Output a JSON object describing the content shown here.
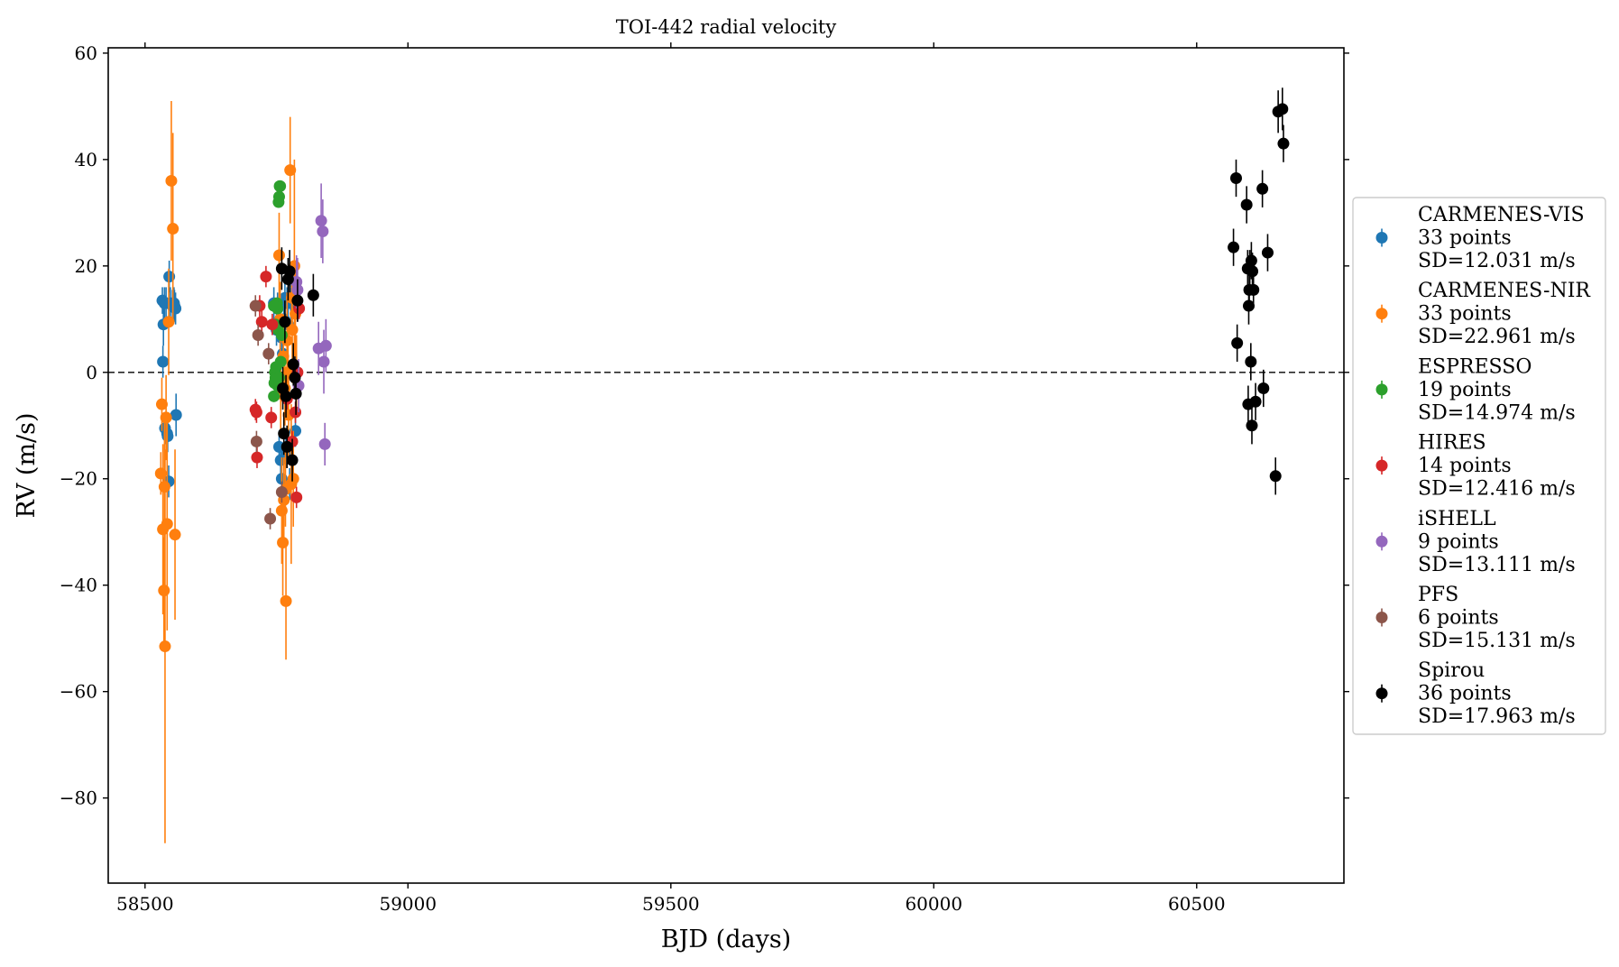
{
  "chart_data": {
    "type": "scatter",
    "title": "TOI-442 radial velocity",
    "xlabel": "BJD (days)",
    "ylabel": "RV (m/s)",
    "xlim": [
      58430,
      60780
    ],
    "ylim": [
      -96,
      61
    ],
    "xticks": [
      58500,
      59000,
      59500,
      60000,
      60500
    ],
    "yticks": [
      -80,
      -60,
      -40,
      -20,
      0,
      20,
      40,
      60
    ],
    "xtick_labels": [
      "58500",
      "59000",
      "59500",
      "60000",
      "60500"
    ],
    "ytick_labels": [
      "−80",
      "−60",
      "−40",
      "−20",
      "0",
      "20",
      "40",
      "60"
    ],
    "reference_line": {
      "y": 0,
      "style": "dashed"
    },
    "legend_position": "right, outside",
    "series": [
      {
        "name": "CARMENES-VIS",
        "count_label": "33 points",
        "sd_label": "SD=12.031 m/s",
        "color": "#1f77b4",
        "points": [
          [
            58533,
            13.5,
            2.5
          ],
          [
            58534,
            2,
            3
          ],
          [
            58535,
            9,
            4
          ],
          [
            58537,
            13,
            3
          ],
          [
            58538,
            -10.5,
            3
          ],
          [
            58540,
            13,
            3
          ],
          [
            58542,
            -11.5,
            3
          ],
          [
            58543,
            -12,
            3
          ],
          [
            58546,
            18,
            3
          ],
          [
            58548,
            13,
            3
          ],
          [
            58552,
            12.5,
            3
          ],
          [
            58555,
            13,
            3
          ],
          [
            58556,
            12.5,
            3
          ],
          [
            58558,
            12,
            3
          ],
          [
            58559,
            -8,
            4
          ],
          [
            58545,
            -20.5,
            3
          ],
          [
            58745,
            13,
            3
          ],
          [
            58750,
            8,
            3
          ],
          [
            58755,
            -14,
            3
          ],
          [
            58758,
            -16.5,
            3
          ],
          [
            58760,
            6.5,
            3
          ],
          [
            58762,
            3.5,
            3
          ],
          [
            58764,
            10,
            3
          ],
          [
            58766,
            14,
            3
          ],
          [
            58768,
            -15,
            3
          ],
          [
            58770,
            13,
            3
          ],
          [
            58772,
            9,
            3
          ],
          [
            58775,
            -21,
            3
          ],
          [
            58777,
            13,
            3
          ],
          [
            58782,
            17,
            3
          ],
          [
            58786,
            -11,
            3
          ],
          [
            58752,
            12,
            3
          ],
          [
            58760,
            -20,
            3
          ]
        ]
      },
      {
        "name": "CARMENES-NIR",
        "count_label": "33 points",
        "sd_label": "SD=22.961 m/s",
        "color": "#ff7f0e",
        "points": [
          [
            58530,
            -19,
            4
          ],
          [
            58532,
            -6,
            5
          ],
          [
            58534,
            -29.5,
            16
          ],
          [
            58536,
            -41,
            10
          ],
          [
            58537,
            -21.5,
            12
          ],
          [
            58538,
            -51.5,
            37
          ],
          [
            58540,
            -8.5,
            8
          ],
          [
            58542,
            -28.5,
            20
          ],
          [
            58545,
            9.5,
            10
          ],
          [
            58550,
            36,
            15
          ],
          [
            58553,
            27,
            18
          ],
          [
            58557,
            -30.5,
            16
          ],
          [
            58755,
            22,
            8
          ],
          [
            58757,
            10,
            7
          ],
          [
            58760,
            -26,
            10
          ],
          [
            58762,
            -32,
            10
          ],
          [
            58764,
            -24,
            8
          ],
          [
            58766,
            -3,
            7
          ],
          [
            58768,
            -43,
            11
          ],
          [
            58770,
            6,
            9
          ],
          [
            58772,
            0,
            8
          ],
          [
            58776,
            38,
            10
          ],
          [
            58778,
            -21,
            15
          ],
          [
            58780,
            8,
            10
          ],
          [
            58782,
            -20,
            9
          ],
          [
            58784,
            20,
            20
          ],
          [
            58786,
            11,
            8
          ],
          [
            58788,
            0,
            7
          ],
          [
            58758,
            -4,
            8
          ],
          [
            58763,
            3,
            6
          ],
          [
            58767,
            -22,
            7
          ],
          [
            58773,
            -8,
            8
          ],
          [
            58779,
            14,
            6
          ]
        ]
      },
      {
        "name": "ESPRESSO",
        "count_label": "19 points",
        "sd_label": "SD=14.974 m/s",
        "color": "#2ca02c",
        "points": [
          [
            58745,
            -4.5,
            1
          ],
          [
            58746,
            -2,
            1
          ],
          [
            58747,
            0,
            1
          ],
          [
            58748,
            -1,
            1
          ],
          [
            58749,
            1,
            1
          ],
          [
            58750,
            8.5,
            1
          ],
          [
            58751,
            13,
            1
          ],
          [
            58752,
            12,
            1
          ],
          [
            58753,
            8,
            1
          ],
          [
            58754,
            32,
            1
          ],
          [
            58755,
            33,
            1
          ],
          [
            58756,
            35,
            1
          ],
          [
            58757,
            35,
            1
          ],
          [
            58745,
            12.5,
            1
          ],
          [
            58748,
            9,
            1
          ],
          [
            58752,
            -2.5,
            1
          ],
          [
            58755,
            -1,
            1
          ],
          [
            58758,
            2,
            1
          ],
          [
            58760,
            7,
            1
          ]
        ]
      },
      {
        "name": "HIRES",
        "count_label": "14 points",
        "sd_label": "SD=12.416 m/s",
        "color": "#d62728",
        "points": [
          [
            58710,
            -7,
            2
          ],
          [
            58713,
            -16,
            2
          ],
          [
            58718,
            12.5,
            2
          ],
          [
            58722,
            9.5,
            2
          ],
          [
            58730,
            18,
            2
          ],
          [
            58740,
            -8.5,
            2
          ],
          [
            58712,
            -7.5,
            2
          ],
          [
            58770,
            -5,
            2
          ],
          [
            58780,
            -13,
            2
          ],
          [
            58786,
            -7.5,
            2
          ],
          [
            58790,
            0,
            2
          ],
          [
            58793,
            12,
            2
          ],
          [
            58788,
            -23.5,
            2
          ],
          [
            58742,
            9,
            2
          ]
        ]
      },
      {
        "name": "iSHELL",
        "count_label": "9 points",
        "sd_label": "SD=13.111 m/s",
        "color": "#9467bd",
        "points": [
          [
            58790,
            15.5,
            6
          ],
          [
            58792,
            -2.5,
            5
          ],
          [
            58830,
            4.5,
            5
          ],
          [
            58835,
            28.5,
            7
          ],
          [
            58838,
            26.5,
            6
          ],
          [
            58840,
            2,
            6
          ],
          [
            58842,
            -13.5,
            4
          ],
          [
            58844,
            5,
            5
          ],
          [
            58788,
            17,
            5
          ]
        ]
      },
      {
        "name": "PFS",
        "count_label": "6 points",
        "sd_label": "SD=15.131 m/s",
        "color": "#8c564b",
        "points": [
          [
            58710,
            12.5,
            2
          ],
          [
            58712,
            -13,
            2
          ],
          [
            58715,
            7,
            2
          ],
          [
            58735,
            3.5,
            2
          ],
          [
            58738,
            -27.5,
            2
          ],
          [
            58760,
            -22.5,
            2
          ]
        ]
      },
      {
        "name": "Spirou",
        "count_label": "36 points",
        "sd_label": "SD=17.963 m/s",
        "color": "#000000",
        "points": [
          [
            58760,
            19.5,
            4
          ],
          [
            58762,
            -3,
            4
          ],
          [
            58764,
            -11.5,
            4
          ],
          [
            58766,
            9.5,
            4
          ],
          [
            58768,
            -4.5,
            4
          ],
          [
            58770,
            -14,
            4
          ],
          [
            58772,
            17.5,
            4
          ],
          [
            58775,
            19,
            4
          ],
          [
            58780,
            -16.5,
            4
          ],
          [
            58782,
            1.5,
            4
          ],
          [
            58785,
            -1,
            4
          ],
          [
            58787,
            -4,
            4
          ],
          [
            58790,
            13.5,
            4
          ],
          [
            58820,
            14.5,
            4
          ],
          [
            60570,
            23.5,
            3.5
          ],
          [
            60575,
            36.5,
            3.5
          ],
          [
            60577,
            5.5,
            3.5
          ],
          [
            60595,
            31.5,
            3.5
          ],
          [
            60597,
            19.5,
            3.5
          ],
          [
            60598,
            -6,
            3.5
          ],
          [
            60599,
            12.5,
            3.5
          ],
          [
            60600,
            15.5,
            3.5
          ],
          [
            60601,
            19.5,
            3.5
          ],
          [
            60603,
            2,
            3.5
          ],
          [
            60604,
            21,
            3.5
          ],
          [
            60605,
            -10,
            3.5
          ],
          [
            60606,
            19,
            3.5
          ],
          [
            60608,
            15.5,
            3.5
          ],
          [
            60612,
            -5.5,
            3.5
          ],
          [
            60625,
            34.5,
            3.5
          ],
          [
            60627,
            -3,
            3.5
          ],
          [
            60635,
            22.5,
            3.5
          ],
          [
            60650,
            -19.5,
            3.5
          ],
          [
            60655,
            49,
            4
          ],
          [
            60663,
            49.5,
            4
          ],
          [
            60665,
            43,
            3.5
          ]
        ]
      }
    ]
  }
}
